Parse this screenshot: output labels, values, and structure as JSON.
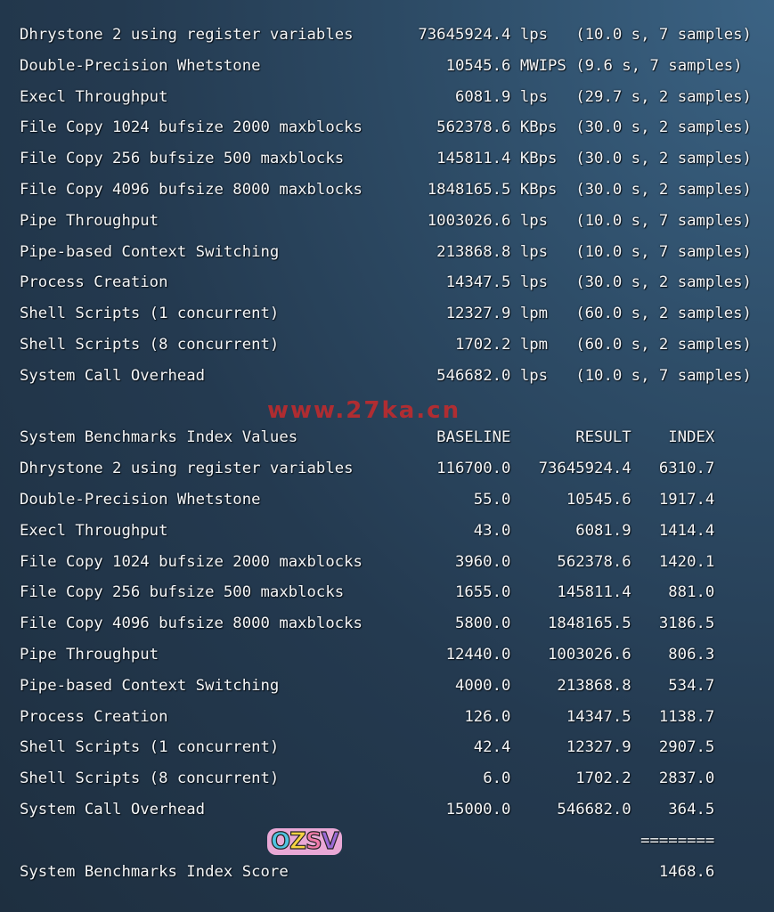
{
  "results": [
    {
      "name": "Dhrystone 2 using register variables",
      "value": "73645924.4",
      "unit": "lps",
      "detail": "(10.0 s, 7 samples)"
    },
    {
      "name": "Double-Precision Whetstone",
      "value": "10545.6",
      "unit": "MWIPS",
      "detail": "(9.6 s, 7 samples)"
    },
    {
      "name": "Execl Throughput",
      "value": "6081.9",
      "unit": "lps",
      "detail": "(29.7 s, 2 samples)"
    },
    {
      "name": "File Copy 1024 bufsize 2000 maxblocks",
      "value": "562378.6",
      "unit": "KBps",
      "detail": "(30.0 s, 2 samples)"
    },
    {
      "name": "File Copy 256 bufsize 500 maxblocks",
      "value": "145811.4",
      "unit": "KBps",
      "detail": "(30.0 s, 2 samples)"
    },
    {
      "name": "File Copy 4096 bufsize 8000 maxblocks",
      "value": "1848165.5",
      "unit": "KBps",
      "detail": "(30.0 s, 2 samples)"
    },
    {
      "name": "Pipe Throughput",
      "value": "1003026.6",
      "unit": "lps",
      "detail": "(10.0 s, 7 samples)"
    },
    {
      "name": "Pipe-based Context Switching",
      "value": "213868.8",
      "unit": "lps",
      "detail": "(10.0 s, 7 samples)"
    },
    {
      "name": "Process Creation",
      "value": "14347.5",
      "unit": "lps",
      "detail": "(30.0 s, 2 samples)"
    },
    {
      "name": "Shell Scripts (1 concurrent)",
      "value": "12327.9",
      "unit": "lpm",
      "detail": "(60.0 s, 2 samples)"
    },
    {
      "name": "Shell Scripts (8 concurrent)",
      "value": "1702.2",
      "unit": "lpm",
      "detail": "(60.0 s, 2 samples)"
    },
    {
      "name": "System Call Overhead",
      "value": "546682.0",
      "unit": "lps",
      "detail": "(10.0 s, 7 samples)"
    }
  ],
  "index": {
    "header": {
      "name": "System Benchmarks Index Values",
      "baseline": "BASELINE",
      "result": "RESULT",
      "index": "INDEX"
    },
    "rows": [
      {
        "name": "Dhrystone 2 using register variables",
        "baseline": "116700.0",
        "result": "73645924.4",
        "index": "6310.7"
      },
      {
        "name": "Double-Precision Whetstone",
        "baseline": "55.0",
        "result": "10545.6",
        "index": "1917.4"
      },
      {
        "name": "Execl Throughput",
        "baseline": "43.0",
        "result": "6081.9",
        "index": "1414.4"
      },
      {
        "name": "File Copy 1024 bufsize 2000 maxblocks",
        "baseline": "3960.0",
        "result": "562378.6",
        "index": "1420.1"
      },
      {
        "name": "File Copy 256 bufsize 500 maxblocks",
        "baseline": "1655.0",
        "result": "145811.4",
        "index": "881.0"
      },
      {
        "name": "File Copy 4096 bufsize 8000 maxblocks",
        "baseline": "5800.0",
        "result": "1848165.5",
        "index": "3186.5"
      },
      {
        "name": "Pipe Throughput",
        "baseline": "12440.0",
        "result": "1003026.6",
        "index": "806.3"
      },
      {
        "name": "Pipe-based Context Switching",
        "baseline": "4000.0",
        "result": "213868.8",
        "index": "534.7"
      },
      {
        "name": "Process Creation",
        "baseline": "126.0",
        "result": "14347.5",
        "index": "1138.7"
      },
      {
        "name": "Shell Scripts (1 concurrent)",
        "baseline": "42.4",
        "result": "12327.9",
        "index": "2907.5"
      },
      {
        "name": "Shell Scripts (8 concurrent)",
        "baseline": "6.0",
        "result": "1702.2",
        "index": "2837.0"
      },
      {
        "name": "System Call Overhead",
        "baseline": "15000.0",
        "result": "546682.0",
        "index": "364.5"
      }
    ],
    "separator": "========",
    "score_label": "System Benchmarks Index Score",
    "score": "1468.6"
  },
  "watermark": "www.27ka.cn",
  "logo": "OZSV"
}
